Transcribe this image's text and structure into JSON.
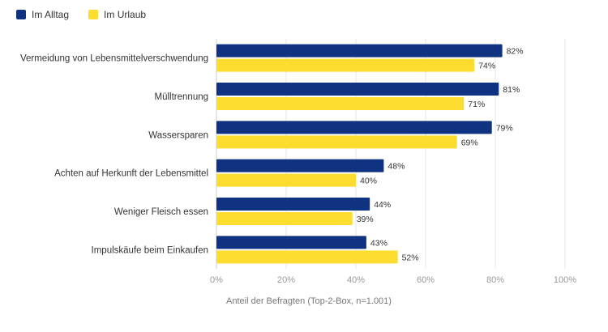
{
  "chart_data": {
    "type": "bar",
    "orientation": "horizontal",
    "categories": [
      "Vermeidung von Lebensmittelverschwendung",
      "Mülltrennung",
      "Wassersparen",
      "Achten auf Herkunft der Lebensmittel",
      "Weniger Fleisch essen",
      "Impulskäufe beim Einkaufen"
    ],
    "series": [
      {
        "name": "Im Alltag",
        "color": "#0f3380",
        "values": [
          82,
          81,
          79,
          48,
          44,
          43
        ]
      },
      {
        "name": "Im Urlaub",
        "color": "#fcdc2f",
        "values": [
          74,
          71,
          69,
          40,
          39,
          52
        ]
      }
    ],
    "value_suffix": "%",
    "xlabel": "Anteil der Befragten (Top-2-Box, n=1.001)",
    "ylabel": "",
    "xlim": [
      0,
      100
    ],
    "xticks": [
      "0%",
      "20%",
      "40%",
      "60%",
      "80%",
      "100%"
    ],
    "grid": true,
    "legend_position": "top-left"
  }
}
